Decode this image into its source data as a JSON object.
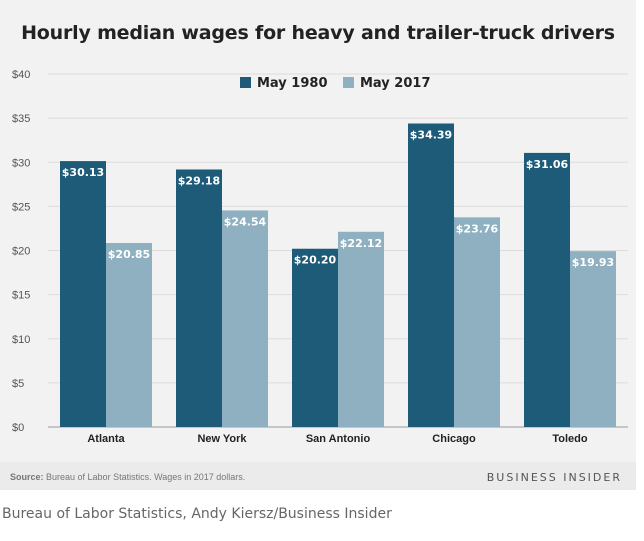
{
  "chart_data": {
    "type": "bar",
    "title": "Hourly median wages for heavy and trailer-truck drivers",
    "categories": [
      "Atlanta",
      "New York",
      "San Antonio",
      "Chicago",
      "Toledo"
    ],
    "series": [
      {
        "name": "May 1980",
        "color": "#1d5b78",
        "values": [
          30.13,
          29.18,
          20.2,
          34.39,
          31.06
        ],
        "labels": [
          "$30.13",
          "$29.18",
          "$20.20",
          "$34.39",
          "$31.06"
        ]
      },
      {
        "name": "May 2017",
        "color": "#8fb0c1",
        "values": [
          20.85,
          24.54,
          22.12,
          23.76,
          19.93
        ],
        "labels": [
          "$20.85",
          "$24.54",
          "$22.12",
          "$23.76",
          "$19.93"
        ]
      }
    ],
    "ylim": [
      0,
      40
    ],
    "yticks": [
      0,
      5,
      10,
      15,
      20,
      25,
      30,
      35,
      40
    ],
    "ytick_labels": [
      "$0",
      "$5",
      "$10",
      "$15",
      "$20",
      "$25",
      "$30",
      "$35",
      "$40"
    ],
    "xlabel": "",
    "ylabel": "",
    "grid": true,
    "legend": "top"
  },
  "footer": {
    "source_label": "Source:",
    "source_text": " Bureau of Labor Statistics. Wages in 2017 dollars.",
    "brand": "BUSINESS INSIDER"
  },
  "caption": "Bureau of Labor Statistics, Andy Kiersz/Business Insider"
}
